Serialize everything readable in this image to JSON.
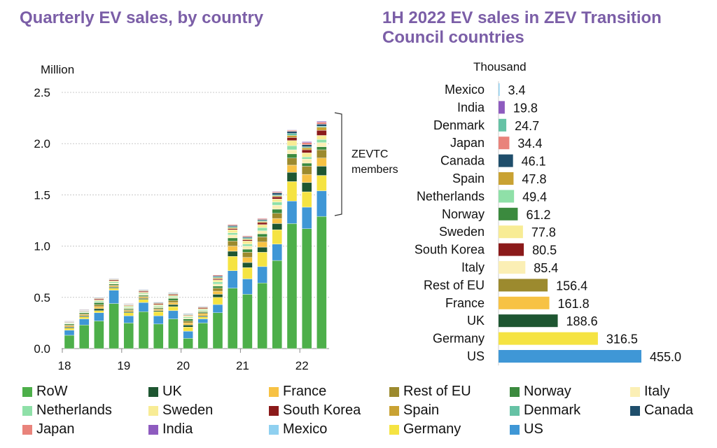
{
  "left_title": "Quarterly EV sales, by country",
  "right_title": "1H 2022 EV sales in ZEV Transition Council countries",
  "colors": {
    "RoW": "#4daf4a",
    "UK": "#1e5631",
    "France": "#f7c244",
    "Rest of EU": "#9c8a2e",
    "Norway": "#3b8a3e",
    "Italy": "#fbefb5",
    "Netherlands": "#8fe0a8",
    "Sweden": "#f8ec95",
    "South Korea": "#8b1a1a",
    "Spain": "#c9a233",
    "Denmark": "#66c2a5",
    "Canada": "#1f4e6b",
    "Japan": "#e9837b",
    "India": "#8e5bbf",
    "Mexico": "#8fd0f0",
    "Germany": "#f5e342",
    "US": "#3f97d6"
  },
  "chart_data": [
    {
      "type": "bar",
      "stacked": true,
      "title": "Quarterly EV sales, by country",
      "ylabel": "Million",
      "ylim": [
        0,
        2.5
      ],
      "yticks": [
        "0.0",
        "0.5",
        "1.0",
        "1.5",
        "2.0",
        "2.5"
      ],
      "xtick_labels": [
        "18",
        "19",
        "20",
        "21",
        "22"
      ],
      "categories": [
        "18Q1",
        "18Q2",
        "18Q3",
        "18Q4",
        "19Q1",
        "19Q2",
        "19Q3",
        "19Q4",
        "20Q1",
        "20Q2",
        "20Q3",
        "20Q4",
        "21Q1",
        "21Q2",
        "21Q3",
        "21Q4",
        "22Q1",
        "22Q2"
      ],
      "annotation": "ZEVTC members",
      "series": [
        {
          "name": "RoW",
          "values": [
            0.13,
            0.23,
            0.27,
            0.44,
            0.25,
            0.36,
            0.24,
            0.29,
            0.1,
            0.25,
            0.35,
            0.59,
            0.53,
            0.64,
            0.86,
            1.22,
            1.17,
            1.29
          ]
        },
        {
          "name": "US",
          "values": [
            0.05,
            0.06,
            0.08,
            0.13,
            0.07,
            0.09,
            0.08,
            0.08,
            0.07,
            0.04,
            0.08,
            0.17,
            0.15,
            0.16,
            0.16,
            0.22,
            0.21,
            0.25
          ]
        },
        {
          "name": "Germany",
          "values": [
            0.02,
            0.02,
            0.02,
            0.02,
            0.03,
            0.03,
            0.04,
            0.04,
            0.04,
            0.02,
            0.07,
            0.14,
            0.11,
            0.14,
            0.14,
            0.19,
            0.15,
            0.15
          ]
        },
        {
          "name": "UK",
          "values": [
            0.01,
            0.01,
            0.02,
            0.01,
            0.01,
            0.01,
            0.01,
            0.02,
            0.02,
            0.01,
            0.03,
            0.05,
            0.05,
            0.05,
            0.06,
            0.09,
            0.09,
            0.09
          ]
        },
        {
          "name": "France",
          "values": [
            0.01,
            0.01,
            0.02,
            0.01,
            0.01,
            0.01,
            0.01,
            0.02,
            0.02,
            0.02,
            0.03,
            0.05,
            0.05,
            0.05,
            0.05,
            0.07,
            0.08,
            0.08
          ]
        },
        {
          "name": "Rest of EU",
          "values": [
            0.01,
            0.01,
            0.02,
            0.01,
            0.01,
            0.01,
            0.01,
            0.02,
            0.02,
            0.01,
            0.03,
            0.05,
            0.05,
            0.05,
            0.05,
            0.07,
            0.08,
            0.08
          ]
        },
        {
          "name": "Norway",
          "values": [
            0.01,
            0.01,
            0.02,
            0.01,
            0.01,
            0.01,
            0.01,
            0.02,
            0.02,
            0.01,
            0.02,
            0.03,
            0.03,
            0.03,
            0.04,
            0.04,
            0.03,
            0.03
          ]
        },
        {
          "name": "Italy",
          "values": [
            0.005,
            0.005,
            0.005,
            0.01,
            0.01,
            0.01,
            0.01,
            0.01,
            0.01,
            0.01,
            0.02,
            0.03,
            0.03,
            0.03,
            0.04,
            0.04,
            0.04,
            0.04
          ]
        },
        {
          "name": "Netherlands",
          "values": [
            0.005,
            0.005,
            0.01,
            0.01,
            0.01,
            0.01,
            0.01,
            0.01,
            0.01,
            0.01,
            0.02,
            0.02,
            0.02,
            0.03,
            0.03,
            0.04,
            0.02,
            0.03
          ]
        },
        {
          "name": "Sweden",
          "values": [
            0.005,
            0.005,
            0.01,
            0.01,
            0.01,
            0.01,
            0.01,
            0.01,
            0.01,
            0.01,
            0.02,
            0.03,
            0.03,
            0.03,
            0.03,
            0.05,
            0.04,
            0.04
          ]
        },
        {
          "name": "South Korea",
          "values": [
            0.005,
            0.005,
            0.01,
            0.01,
            0.005,
            0.01,
            0.01,
            0.01,
            0.005,
            0.01,
            0.01,
            0.01,
            0.01,
            0.02,
            0.02,
            0.03,
            0.03,
            0.05
          ]
        },
        {
          "name": "Spain",
          "values": [
            0.002,
            0.002,
            0.005,
            0.005,
            0.005,
            0.005,
            0.005,
            0.005,
            0.005,
            0.005,
            0.01,
            0.01,
            0.01,
            0.01,
            0.01,
            0.02,
            0.02,
            0.03
          ]
        },
        {
          "name": "Denmark",
          "values": [
            0.002,
            0.002,
            0.002,
            0.002,
            0.002,
            0.002,
            0.002,
            0.005,
            0.005,
            0.002,
            0.01,
            0.01,
            0.01,
            0.01,
            0.01,
            0.02,
            0.01,
            0.01
          ]
        },
        {
          "name": "Canada",
          "values": [
            0.005,
            0.005,
            0.005,
            0.005,
            0.005,
            0.005,
            0.005,
            0.005,
            0.005,
            0.005,
            0.01,
            0.01,
            0.01,
            0.01,
            0.02,
            0.02,
            0.02,
            0.02
          ]
        },
        {
          "name": "Japan",
          "values": [
            0.005,
            0.005,
            0.005,
            0.005,
            0.005,
            0.005,
            0.005,
            0.005,
            0.005,
            0.005,
            0.01,
            0.01,
            0.01,
            0.01,
            0.01,
            0.01,
            0.02,
            0.02
          ]
        },
        {
          "name": "India",
          "values": [
            0.001,
            0.001,
            0.001,
            0.001,
            0.001,
            0.001,
            0.001,
            0.001,
            0.001,
            0.001,
            0.002,
            0.003,
            0.003,
            0.004,
            0.005,
            0.005,
            0.01,
            0.01
          ]
        },
        {
          "name": "Mexico",
          "values": [
            0.001,
            0.001,
            0.001,
            0.001,
            0.001,
            0.001,
            0.001,
            0.001,
            0.001,
            0.001,
            0.001,
            0.002,
            0.002,
            0.002,
            0.002,
            0.002,
            0.002,
            0.002
          ]
        }
      ]
    },
    {
      "type": "bar",
      "orientation": "horizontal",
      "title": "1H 2022 EV sales in ZEV Transition Council countries",
      "xlabel": "Thousand",
      "categories": [
        "Mexico",
        "India",
        "Denmark",
        "Japan",
        "Canada",
        "Spain",
        "Netherlands",
        "Norway",
        "Sweden",
        "South Korea",
        "Italy",
        "Rest of EU",
        "France",
        "UK",
        "Germany",
        "US"
      ],
      "values": [
        3.4,
        19.8,
        24.7,
        34.4,
        46.1,
        47.8,
        49.4,
        61.2,
        77.8,
        80.5,
        85.4,
        156.4,
        161.8,
        188.6,
        316.5,
        455.0
      ],
      "labels": [
        "3.4",
        "19.8",
        "24.7",
        "34.4",
        "46.1",
        "47.8",
        "49.4",
        "61.2",
        "77.8",
        "80.5",
        "85.4",
        "156.4",
        "161.8",
        "188.6",
        "316.5",
        "455.0"
      ]
    }
  ],
  "legend": [
    "RoW",
    "UK",
    "France",
    "Rest of EU",
    "Norway",
    "Italy",
    "Netherlands",
    "Sweden",
    "South Korea",
    "Spain",
    "Denmark",
    "Canada",
    "Japan",
    "India",
    "Mexico",
    "Germany",
    "US"
  ]
}
